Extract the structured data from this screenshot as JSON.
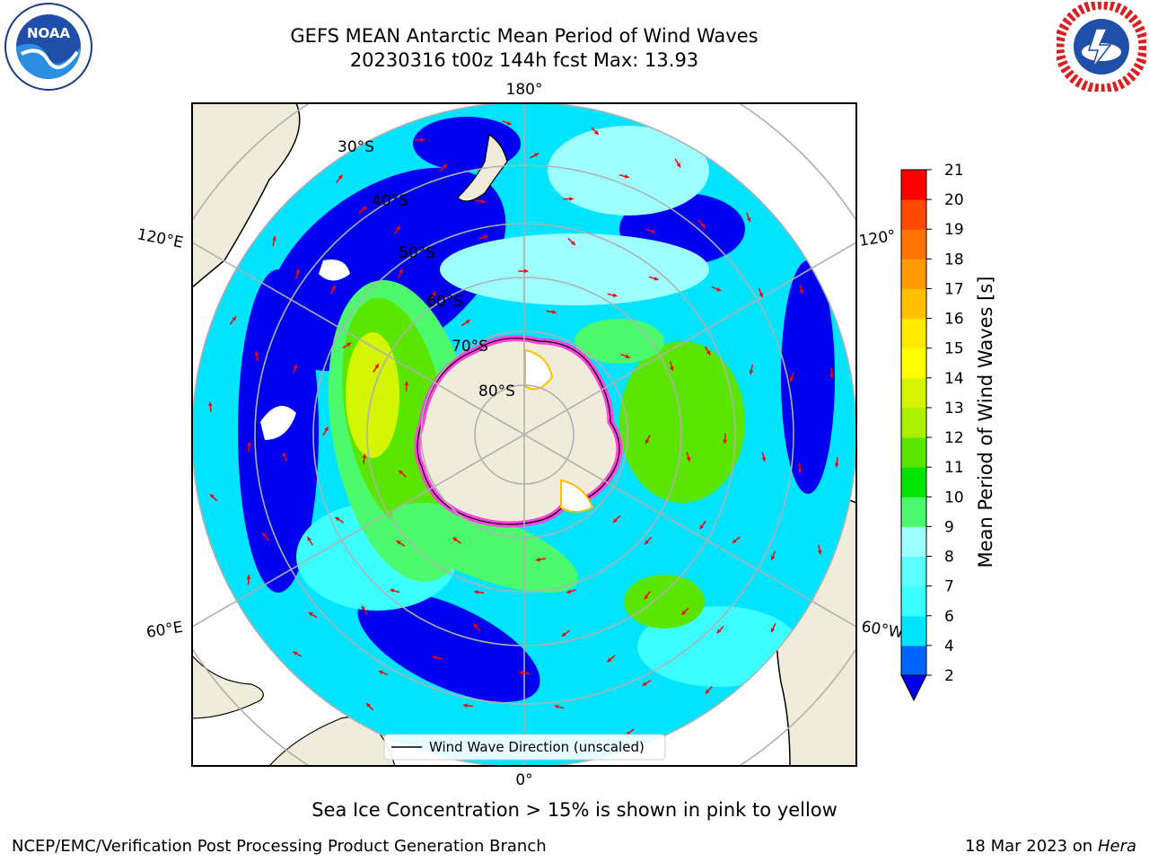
{
  "title": {
    "line1": "GEFS MEAN Antarctic Mean Period of Wind Waves",
    "line2": "20230316 t00z 144h fcst   Max: 13.93"
  },
  "logos": {
    "left": "noaa-logo",
    "right": "national-weather-service-logo"
  },
  "map": {
    "projection": "south-polar-stereographic",
    "longitude_labels": {
      "top": "180°",
      "bottom": "0°",
      "upper_left": "120°E",
      "upper_right": "120°",
      "lower_left": "60°E",
      "lower_right": "60°W"
    },
    "latitude_labels": [
      "30°S",
      "40°S",
      "50°S",
      "60°S",
      "70°S",
      "80°S"
    ],
    "legend": {
      "label": "Wind Wave Direction (unscaled)",
      "placement": "lower-center"
    }
  },
  "chart_data": {
    "type": "heatmap",
    "variable": "Mean Period of Wind Waves",
    "units": "s",
    "max": 13.93,
    "colorbar": {
      "label": "Mean Period of Wind Waves [s]",
      "ticks": [
        2,
        4,
        6,
        7,
        8,
        9,
        10,
        11,
        12,
        13,
        14,
        15,
        16,
        17,
        18,
        19,
        20,
        21
      ],
      "colors": [
        "#0064ff",
        "#00e4ff",
        "#3cffff",
        "#5affff",
        "#9effff",
        "#4cf96c",
        "#00e400",
        "#5ae600",
        "#aaf000",
        "#d4f500",
        "#ffff00",
        "#ffea00",
        "#ffc000",
        "#ff9a00",
        "#ff7400",
        "#ff4800",
        "#ff0000"
      ],
      "under_color": "#0000f0"
    }
  },
  "caption": "Sea Ice Concentration > 15% is shown in pink to yellow",
  "footer": {
    "left": "NCEP/EMC/Verification Post Processing Product Generation Branch",
    "right_date": "18 Mar 2023 on",
    "right_host": "Hera"
  }
}
